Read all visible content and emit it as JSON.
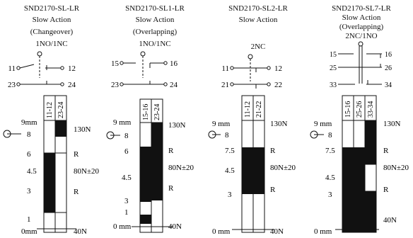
{
  "panels": [
    {
      "title": "SND2170-SL-LR",
      "lines": [
        "Slow Action",
        "(Changeover)",
        "1NO/1NC"
      ],
      "contacts": {
        "left_a": "11",
        "right_a": "12",
        "left_b": "23",
        "right_b": "24"
      },
      "columns": [
        "11-12",
        "23-24"
      ],
      "force_labels": [
        "130N",
        "R",
        "80N±20",
        "R",
        "40N"
      ],
      "travel_labels": [
        "9mm",
        "8",
        "6",
        "4.5",
        "3",
        "1",
        "0mm"
      ]
    },
    {
      "title": "SND2170-SL1-LR",
      "lines": [
        "Slow Action",
        "(Overlapping)",
        "1NO/1NC"
      ],
      "contacts": {
        "left_a": "15",
        "right_a": "16",
        "left_b": "23",
        "right_b": "24"
      },
      "columns": [
        "15-16",
        "23-24"
      ],
      "force_labels": [
        "130N",
        "R",
        "80N±20",
        "R",
        "40N"
      ],
      "travel_labels": [
        "9 mm",
        "8",
        "6",
        "4.5",
        "3",
        "1",
        "0 mm"
      ]
    },
    {
      "title": "SND2170-SL2-LR",
      "lines": [
        "Slow Action",
        "",
        "2NC"
      ],
      "contacts": {
        "left_a": "11",
        "right_a": "12",
        "left_b": "21",
        "right_b": "22"
      },
      "columns": [
        "11-12",
        "21-22"
      ],
      "force_labels": [
        "130N",
        "R",
        "80N±20",
        "R",
        "40N"
      ],
      "travel_labels": [
        "9 mm",
        "8",
        "7.5",
        "4.5",
        "3",
        "0 mm"
      ]
    },
    {
      "title": "SND2170-SL7-LR",
      "lines": [
        "Slow Action",
        "(Overlapping)",
        "2NC/1NO"
      ],
      "contacts": {
        "a_left": "15",
        "a_right": "16",
        "b_left": "25",
        "b_right": "26",
        "c_left": "33",
        "c_right": "34"
      },
      "columns": [
        "15-16",
        "25-26",
        "33-34"
      ],
      "force_labels": [
        "130N",
        "R",
        "80N±20",
        "R",
        "40N"
      ],
      "travel_labels": [
        "9 mm",
        "8",
        "7.5",
        "4.5",
        "3",
        "0 mm"
      ]
    }
  ]
}
